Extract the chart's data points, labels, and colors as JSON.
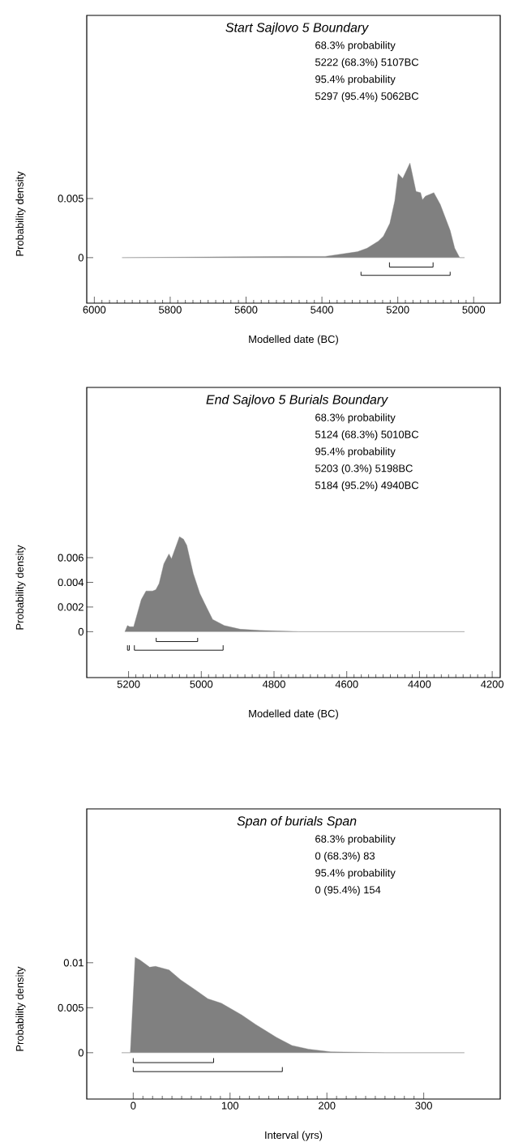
{
  "chart_data": [
    {
      "type": "area",
      "title": "Start Sajlovo 5 Boundary",
      "xlabel": "Modelled date (BC)",
      "ylabel": "Probability density",
      "annotations": [
        "68.3% probability",
        "5222 (68.3%) 5107BC",
        "95.4% probability",
        "5297 (95.4%) 5062BC"
      ],
      "xlim": [
        6020,
        4930
      ],
      "ylim": [
        -0.00385,
        0.0205
      ],
      "xticks": [
        6000,
        5800,
        5600,
        5400,
        5200,
        5000
      ],
      "yticks": [
        0,
        0.005
      ],
      "series": [
        {
          "color": "#808080",
          "x": [
            5927,
            5495,
            5392,
            5349,
            5306,
            5281,
            5251,
            5238,
            5221,
            5208,
            5199,
            5187,
            5168,
            5152,
            5140,
            5135,
            5127,
            5105,
            5088,
            5062,
            5050,
            5037,
            5024
          ],
          "values": [
            0,
            0.0001,
            0.0001,
            0.0003,
            0.0005,
            0.0008,
            0.0014,
            0.0018,
            0.0029,
            0.0048,
            0.0071,
            0.0067,
            0.008,
            0.0056,
            0.0055,
            0.0049,
            0.0052,
            0.0055,
            0.0045,
            0.0023,
            0.0008,
            0,
            0
          ]
        },
        {
          "type": "line",
          "color": "#000000",
          "x": [
            5222,
            5222,
            5107,
            5107
          ],
          "values": [
            -0.0004,
            -0.0008,
            -0.0008,
            -0.0004
          ]
        },
        {
          "type": "line",
          "color": "#000000",
          "x": [
            5297,
            5297,
            5062,
            5062
          ],
          "values": [
            -0.0012,
            -0.0015,
            -0.0015,
            -0.0012
          ]
        }
      ]
    },
    {
      "type": "area",
      "title": "End Sajlovo 5 Burials Boundary",
      "xlabel": "Modelled date (BC)",
      "ylabel": "Probability density",
      "annotations": [
        "68.3% probability",
        "5124 (68.3%) 5010BC",
        "95.4% probability",
        "5203 (0.3%) 5198BC",
        "5184 (95.2%) 4940BC"
      ],
      "xlim": [
        5315,
        4178
      ],
      "ylim": [
        -0.00372,
        0.0198
      ],
      "xticks": [
        5200,
        5000,
        4800,
        4600,
        4400,
        4200
      ],
      "yticks": [
        0,
        0.002,
        0.004,
        0.006
      ],
      "series": [
        {
          "color": "#808080",
          "x": [
            5210,
            5203,
            5197,
            5186,
            5165,
            5152,
            5134,
            5125,
            5116,
            5103,
            5089,
            5082,
            5071,
            5060,
            5049,
            5040,
            5022,
            5004,
            4991,
            4969,
            4937,
            4893,
            4839,
            4732,
            4276
          ],
          "values": [
            0,
            0.0005,
            0.0004,
            0.0004,
            0.0026,
            0.0033,
            0.0033,
            0.0034,
            0.0039,
            0.0055,
            0.0063,
            0.0059,
            0.0068,
            0.0077,
            0.0075,
            0.007,
            0.0047,
            0.0031,
            0.0023,
            0.001,
            0.0005,
            0.0002,
            0.0001,
            0,
            0
          ]
        },
        {
          "type": "line",
          "color": "#000000",
          "x": [
            5124,
            5124,
            5010,
            5010
          ],
          "values": [
            -0.0005,
            -0.0008,
            -0.0008,
            -0.0005
          ]
        },
        {
          "type": "line",
          "color": "#000000",
          "x": [
            5203,
            5203,
            5198,
            5198
          ],
          "values": [
            -0.0011,
            -0.0015,
            -0.0015,
            -0.0011
          ]
        },
        {
          "type": "line",
          "color": "#000000",
          "x": [
            5184,
            5184,
            4940,
            4940
          ],
          "values": [
            -0.0011,
            -0.0015,
            -0.0015,
            -0.0011
          ]
        }
      ]
    },
    {
      "type": "area",
      "title": "Span of burials Span",
      "xlabel": "Interval (yrs)",
      "ylabel": "Probability density",
      "annotations": [
        "68.3% probability",
        "0 (68.3%) 83",
        "95.4% probability",
        "0 (95.4%) 154"
      ],
      "xlim": [
        -48,
        379
      ],
      "ylim": [
        -0.00515,
        0.0271
      ],
      "xticks": [
        0,
        100,
        200,
        300
      ],
      "yticks": [
        0,
        0.005,
        0.01
      ],
      "series": [
        {
          "color": "#808080",
          "x": [
            -12,
            -3,
            2,
            7,
            17,
            23,
            37,
            49,
            64,
            77,
            91,
            112,
            127,
            148,
            164,
            181,
            204,
            261,
            342
          ],
          "values": [
            0,
            0,
            0.0106,
            0.0103,
            0.0095,
            0.0096,
            0.0092,
            0.0081,
            0.007,
            0.006,
            0.0055,
            0.0042,
            0.0031,
            0.0017,
            0.0008,
            0.0004,
            0.0001,
            0,
            0
          ]
        },
        {
          "type": "line",
          "color": "#000000",
          "x": [
            0,
            0,
            83,
            83
          ],
          "values": [
            -0.0006,
            -0.0011,
            -0.0011,
            -0.0006
          ]
        },
        {
          "type": "line",
          "color": "#000000",
          "x": [
            0,
            0,
            154,
            154
          ],
          "values": [
            -0.0016,
            -0.0021,
            -0.0021,
            -0.0016
          ]
        }
      ]
    }
  ]
}
